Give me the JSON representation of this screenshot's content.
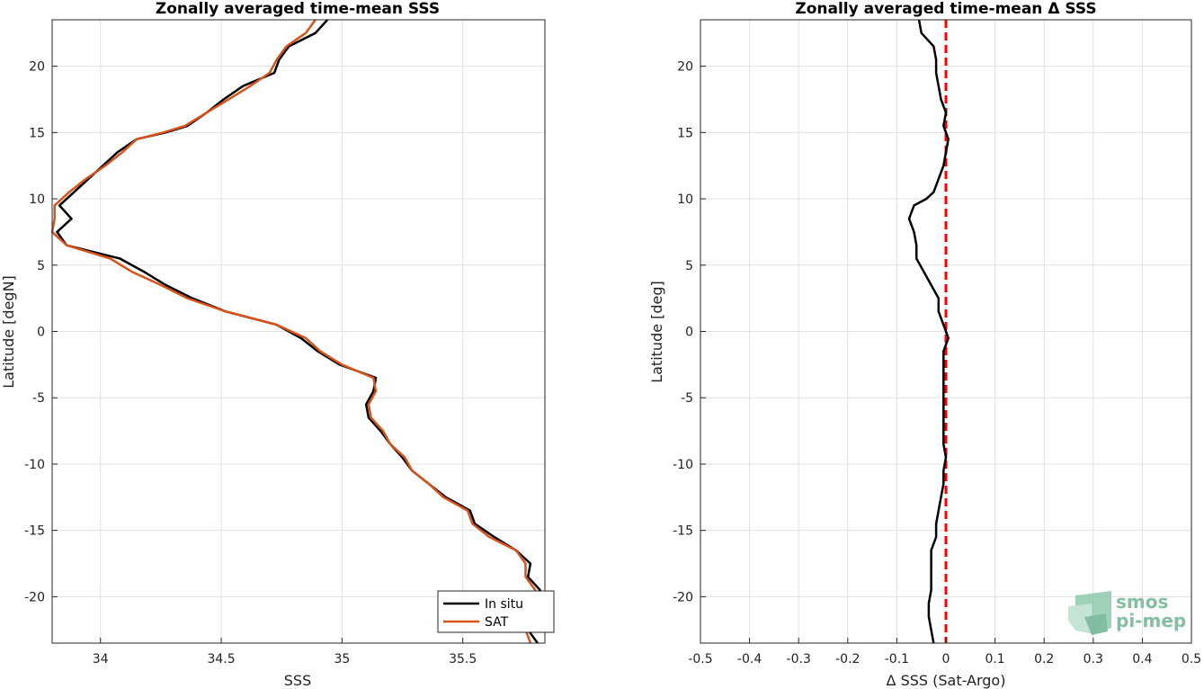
{
  "chart_data": [
    {
      "type": "line",
      "title": "Zonally averaged time-mean SSS",
      "xlabel": "SSS",
      "ylabel": "Latitude [degN]",
      "xlim": [
        33.8,
        35.84
      ],
      "ylim": [
        -23.5,
        23.5
      ],
      "xticks": [
        34,
        34.5,
        35,
        35.5
      ],
      "xtick_labels": [
        "34",
        "34.5",
        "35",
        "35.5"
      ],
      "yticks": [
        -20,
        -15,
        -10,
        -5,
        0,
        5,
        10,
        15,
        20
      ],
      "ytick_labels": [
        "-20",
        "-15",
        "-10",
        "-5",
        "0",
        "5",
        "10",
        "15",
        "20"
      ],
      "grid": true,
      "legend_position": "bottom-right",
      "series": [
        {
          "name": "In situ",
          "color": "#000000",
          "points": [
            [
              34.94,
              23.5
            ],
            [
              34.89,
              22.5
            ],
            [
              34.78,
              21.5
            ],
            [
              34.74,
              20.5
            ],
            [
              34.72,
              19.5
            ],
            [
              34.59,
              18.5
            ],
            [
              34.51,
              17.5
            ],
            [
              34.44,
              16.5
            ],
            [
              34.36,
              15.5
            ],
            [
              34.27,
              15.0
            ],
            [
              34.15,
              14.5
            ],
            [
              34.07,
              13.5
            ],
            [
              34.01,
              12.5
            ],
            [
              33.95,
              11.5
            ],
            [
              33.89,
              10.5
            ],
            [
              33.83,
              9.5
            ],
            [
              33.88,
              8.5
            ],
            [
              33.82,
              7.5
            ],
            [
              33.86,
              6.5
            ],
            [
              34.08,
              5.5
            ],
            [
              34.18,
              4.5
            ],
            [
              34.27,
              3.5
            ],
            [
              34.38,
              2.5
            ],
            [
              34.52,
              1.5
            ],
            [
              34.73,
              0.5
            ],
            [
              34.83,
              -0.5
            ],
            [
              34.9,
              -1.5
            ],
            [
              34.99,
              -2.5
            ],
            [
              35.14,
              -3.5
            ],
            [
              35.13,
              -4.5
            ],
            [
              35.1,
              -5.5
            ],
            [
              35.11,
              -6.5
            ],
            [
              35.16,
              -7.5
            ],
            [
              35.2,
              -8.5
            ],
            [
              35.25,
              -9.5
            ],
            [
              35.29,
              -10.5
            ],
            [
              35.36,
              -11.5
            ],
            [
              35.43,
              -12.5
            ],
            [
              35.53,
              -13.5
            ],
            [
              35.55,
              -14.5
            ],
            [
              35.63,
              -15.5
            ],
            [
              35.72,
              -16.5
            ],
            [
              35.78,
              -17.5
            ],
            [
              35.77,
              -18.5
            ],
            [
              35.82,
              -19.5
            ],
            [
              35.84,
              -20.5
            ],
            [
              35.8,
              -21.5
            ],
            [
              35.77,
              -22.5
            ],
            [
              35.81,
              -23.5
            ]
          ]
        },
        {
          "name": "SAT",
          "color": "#d95319",
          "points": [
            [
              34.89,
              23.5
            ],
            [
              34.85,
              22.5
            ],
            [
              34.77,
              21.5
            ],
            [
              34.73,
              20.5
            ],
            [
              34.7,
              19.5
            ],
            [
              34.62,
              18.5
            ],
            [
              34.53,
              17.5
            ],
            [
              34.44,
              16.5
            ],
            [
              34.35,
              15.5
            ],
            [
              34.26,
              15.0
            ],
            [
              34.15,
              14.5
            ],
            [
              34.09,
              13.5
            ],
            [
              34.02,
              12.5
            ],
            [
              33.94,
              11.5
            ],
            [
              33.87,
              10.5
            ],
            [
              33.81,
              9.5
            ],
            [
              33.81,
              8.5
            ],
            [
              33.8,
              7.5
            ],
            [
              33.86,
              6.5
            ],
            [
              34.04,
              5.5
            ],
            [
              34.13,
              4.5
            ],
            [
              34.25,
              3.5
            ],
            [
              34.36,
              2.5
            ],
            [
              34.52,
              1.5
            ],
            [
              34.73,
              0.5
            ],
            [
              34.85,
              -0.5
            ],
            [
              34.91,
              -1.5
            ],
            [
              35.0,
              -2.5
            ],
            [
              35.13,
              -3.5
            ],
            [
              35.14,
              -4.5
            ],
            [
              35.11,
              -5.5
            ],
            [
              35.12,
              -6.5
            ],
            [
              35.17,
              -7.5
            ],
            [
              35.2,
              -8.5
            ],
            [
              35.26,
              -9.5
            ],
            [
              35.29,
              -10.5
            ],
            [
              35.36,
              -11.5
            ],
            [
              35.42,
              -12.5
            ],
            [
              35.52,
              -13.5
            ],
            [
              35.54,
              -14.5
            ],
            [
              35.61,
              -15.5
            ],
            [
              35.72,
              -16.5
            ],
            [
              35.76,
              -17.5
            ],
            [
              35.76,
              -18.5
            ],
            [
              35.8,
              -19.5
            ],
            [
              35.8,
              -20.5
            ],
            [
              35.77,
              -21.5
            ],
            [
              35.76,
              -22.5
            ],
            [
              35.78,
              -23.5
            ]
          ]
        }
      ]
    },
    {
      "type": "line",
      "title": "Zonally averaged time-mean Δ SSS",
      "xlabel": "Δ SSS (Sat-Argo)",
      "ylabel": "Latitude [deg]",
      "xlim": [
        -0.5,
        0.5
      ],
      "ylim": [
        -23.5,
        23.5
      ],
      "xticks": [
        -0.5,
        -0.4,
        -0.3,
        -0.2,
        -0.1,
        0,
        0.1,
        0.2,
        0.3,
        0.4,
        0.5
      ],
      "xtick_labels": [
        "-0.5",
        "-0.4",
        "-0.3",
        "-0.2",
        "-0.1",
        "0",
        "0.1",
        "0.2",
        "0.3",
        "0.4",
        "0.5"
      ],
      "yticks": [
        -20,
        -15,
        -10,
        -5,
        0,
        5,
        10,
        15,
        20
      ],
      "ytick_labels": [
        "-20",
        "-15",
        "-10",
        "-5",
        "0",
        "5",
        "10",
        "15",
        "20"
      ],
      "grid": true,
      "reference_line": {
        "x": 0,
        "color": "#ff0000",
        "style": "dashed"
      },
      "series": [
        {
          "name": "",
          "color": "#000000",
          "points": [
            [
              -0.055,
              23.5
            ],
            [
              -0.05,
              22.5
            ],
            [
              -0.025,
              21.5
            ],
            [
              -0.02,
              20.5
            ],
            [
              -0.02,
              19.5
            ],
            [
              -0.015,
              18.5
            ],
            [
              -0.01,
              17.5
            ],
            [
              0.0,
              16.5
            ],
            [
              -0.005,
              15.5
            ],
            [
              0.005,
              14.5
            ],
            [
              0.0,
              13.5
            ],
            [
              -0.005,
              12.5
            ],
            [
              -0.015,
              11.5
            ],
            [
              -0.025,
              10.5
            ],
            [
              -0.04,
              10.0
            ],
            [
              -0.065,
              9.5
            ],
            [
              -0.075,
              8.5
            ],
            [
              -0.065,
              7.5
            ],
            [
              -0.06,
              6.5
            ],
            [
              -0.06,
              5.5
            ],
            [
              -0.045,
              4.5
            ],
            [
              -0.03,
              3.5
            ],
            [
              -0.015,
              2.5
            ],
            [
              -0.015,
              1.5
            ],
            [
              -0.005,
              0.5
            ],
            [
              0.005,
              -0.5
            ],
            [
              -0.005,
              -1.5
            ],
            [
              -0.005,
              -2.5
            ],
            [
              -0.005,
              -3.5
            ],
            [
              -0.005,
              -4.5
            ],
            [
              -0.005,
              -5.5
            ],
            [
              -0.005,
              -6.5
            ],
            [
              -0.005,
              -7.5
            ],
            [
              -0.005,
              -8.5
            ],
            [
              0.0,
              -9.5
            ],
            [
              -0.005,
              -10.5
            ],
            [
              -0.005,
              -11.5
            ],
            [
              -0.01,
              -12.5
            ],
            [
              -0.015,
              -13.5
            ],
            [
              -0.02,
              -14.5
            ],
            [
              -0.02,
              -15.5
            ],
            [
              -0.03,
              -16.5
            ],
            [
              -0.03,
              -17.5
            ],
            [
              -0.03,
              -18.5
            ],
            [
              -0.03,
              -19.5
            ],
            [
              -0.035,
              -20.5
            ],
            [
              -0.035,
              -21.5
            ],
            [
              -0.03,
              -22.5
            ],
            [
              -0.025,
              -23.5
            ]
          ]
        }
      ]
    }
  ],
  "logo": {
    "line1": "smos",
    "line2": "pi-mep",
    "color": "#82c0a0"
  }
}
